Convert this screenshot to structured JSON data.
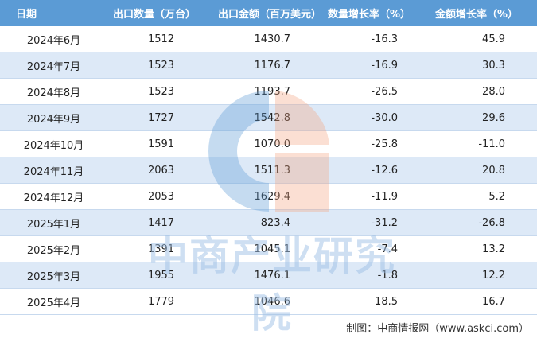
{
  "table": {
    "headers": [
      "日期",
      "出口数量（万台）",
      "出口金额（百万美元）",
      "数量增长率（%）",
      "金额增长率（%）"
    ],
    "rows": [
      [
        "2024年6月",
        "1512",
        "1430.7",
        "-16.3",
        "45.9"
      ],
      [
        "2024年7月",
        "1523",
        "1176.7",
        "-16.9",
        "30.3"
      ],
      [
        "2024年8月",
        "1523",
        "1193.7",
        "-26.5",
        "28.0"
      ],
      [
        "2024年9月",
        "1727",
        "1542.8",
        "-30.0",
        "29.6"
      ],
      [
        "2024年10月",
        "1591",
        "1070.0",
        "-25.8",
        "-11.0"
      ],
      [
        "2024年11月",
        "2063",
        "1511.3",
        "-12.6",
        "20.8"
      ],
      [
        "2024年12月",
        "2053",
        "1629.4",
        "-11.9",
        "5.2"
      ],
      [
        "2025年1月",
        "1417",
        "823.4",
        "-31.2",
        "-26.8"
      ],
      [
        "2025年2月",
        "1391",
        "1045.1",
        "-7.4",
        "13.2"
      ],
      [
        "2025年3月",
        "1955",
        "1476.1",
        "-1.8",
        "12.2"
      ],
      [
        "2025年4月",
        "1779",
        "1046.6",
        "18.5",
        "16.7"
      ]
    ]
  },
  "watermark": {
    "text": "中商产业研究院"
  },
  "source": "制图：中商情报网（www.askci.com）",
  "colors": {
    "header_bg": "#5b9bd5",
    "stripe": "#dde9f7",
    "logo_blue": "#5b9bd5",
    "logo_orange": "#f4a582"
  }
}
